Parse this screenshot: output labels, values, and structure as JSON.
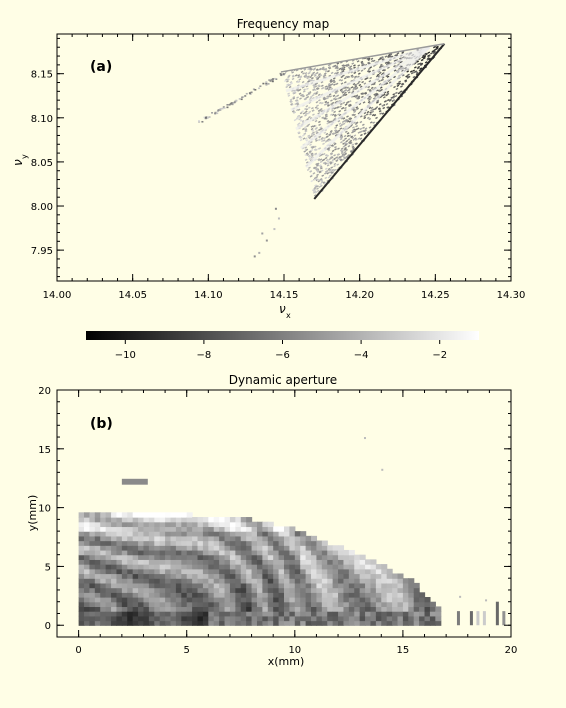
{
  "colors": {
    "background": "#fffee6",
    "axes": "#000000"
  },
  "chart_data": [
    {
      "id": "a",
      "type": "scatter",
      "title": "Frequency map",
      "panel_label": "(a)",
      "xlabel": "ν",
      "xlabel_sub": "x",
      "ylabel": "ν",
      "ylabel_sub": "y",
      "xlim": [
        14.0,
        14.3
      ],
      "ylim": [
        7.915,
        8.195
      ],
      "xticks": [
        14.0,
        14.05,
        14.1,
        14.15,
        14.2,
        14.25,
        14.3
      ],
      "xtick_labels": [
        "14.00",
        "14.05",
        "14.10",
        "14.15",
        "14.20",
        "14.25",
        "14.30"
      ],
      "yticks": [
        7.95,
        8.0,
        8.05,
        8.1,
        8.15
      ],
      "ytick_labels": [
        "7.95",
        "8.00",
        "8.05",
        "8.10",
        "8.15"
      ],
      "grid": false,
      "regions": [
        {
          "desc": "main triangular diffusion region",
          "vertices": [
            [
              14.148,
              8.152
            ],
            [
              14.256,
              8.184
            ],
            [
              14.17,
              8.008
            ]
          ]
        },
        {
          "desc": "left diagonal tail",
          "x0": 14.09,
          "y0": 8.093,
          "x1": 14.15,
          "y1": 8.152
        },
        {
          "desc": "lower scattered points",
          "points": [
            [
              14.13,
              7.944
            ],
            [
              14.133,
              7.948
            ],
            [
              14.138,
              7.962
            ],
            [
              14.143,
              7.975
            ],
            [
              14.146,
              7.987
            ],
            [
              14.144,
              7.998
            ],
            [
              14.135,
              7.97
            ]
          ]
        }
      ],
      "value_range": [
        -11,
        -1
      ]
    },
    {
      "id": "colorbar",
      "type": "colorbar",
      "range": [
        -11,
        -1
      ],
      "ticks": [
        -10,
        -8,
        -6,
        -4,
        -2
      ],
      "tick_labels": [
        "−10",
        "−8",
        "−6",
        "−4",
        "−2"
      ],
      "colormap": "gray (black to white)"
    },
    {
      "id": "b",
      "type": "heatmap",
      "title": "Dynamic aperture",
      "panel_label": "(b)",
      "xlabel": "x(mm)",
      "ylabel": "y(mm)",
      "xlim": [
        -1,
        20
      ],
      "ylim": [
        -1,
        20
      ],
      "xticks": [
        0,
        5,
        10,
        15,
        20
      ],
      "xtick_labels": [
        "0",
        "5",
        "10",
        "15",
        "20"
      ],
      "yticks": [
        0,
        5,
        10,
        15,
        20
      ],
      "ytick_labels": [
        "0",
        "5",
        "10",
        "15",
        "20"
      ],
      "grid": false,
      "boundary_mm": [
        [
          0,
          9.6
        ],
        [
          2,
          9.6
        ],
        [
          4,
          9.4
        ],
        [
          6,
          9.1
        ],
        [
          8,
          8.8
        ],
        [
          10,
          8.0
        ],
        [
          12,
          6.5
        ],
        [
          14,
          5.0
        ],
        [
          15.5,
          3.5
        ],
        [
          16.7,
          1.2
        ],
        [
          16.7,
          0
        ]
      ],
      "island": {
        "x": [
          2,
          3.2
        ],
        "y": 12.2
      },
      "sparse_tail_x_mm": [
        17.5,
        19.8
      ],
      "value_range": [
        -11,
        -1
      ]
    }
  ]
}
